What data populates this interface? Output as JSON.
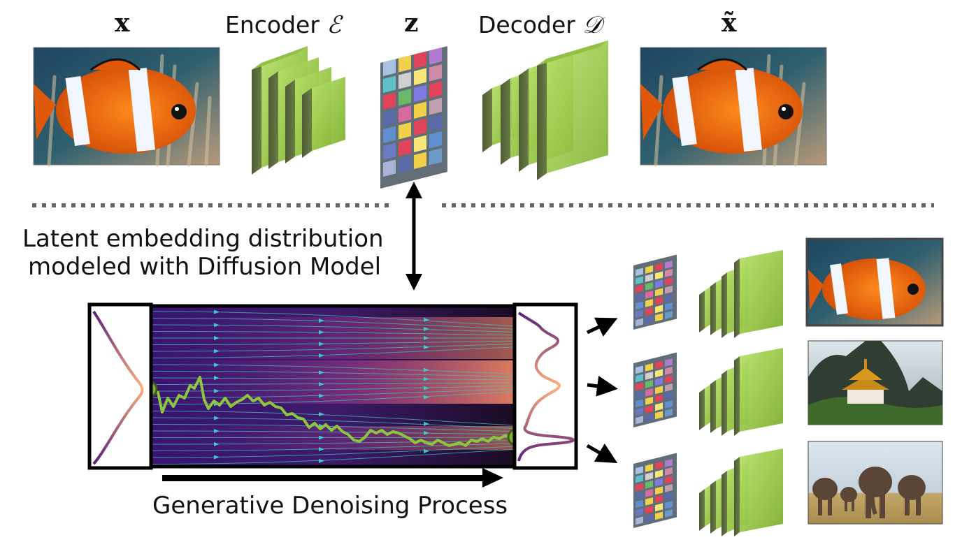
{
  "top": {
    "x_label": "x",
    "encoder_label": "Encoder",
    "encoder_symbol": "ℰ",
    "z_label": "z",
    "decoder_label": "Decoder",
    "decoder_symbol": "𝒟",
    "xtilde_label": "x̃"
  },
  "middle": {
    "latent_line1": "Latent embedding distribution",
    "latent_line2": "modeled with Diffusion Model"
  },
  "bottom": {
    "process_label": "Generative Denoising Process"
  },
  "images": {
    "input": "clownfish-image",
    "reconstruction": "clownfish-image",
    "sample1": "clownfish-image",
    "sample2": "temple-on-mountain-image",
    "sample3": "elephants-image"
  },
  "colors": {
    "layer_green": "#8fc43c",
    "layer_dark": "#55653a",
    "trajectory": "#8cc63f",
    "flow_arrows": "#3fc8c8",
    "density_pink": "#f07a6a",
    "density_purple": "#5a1f7a"
  }
}
